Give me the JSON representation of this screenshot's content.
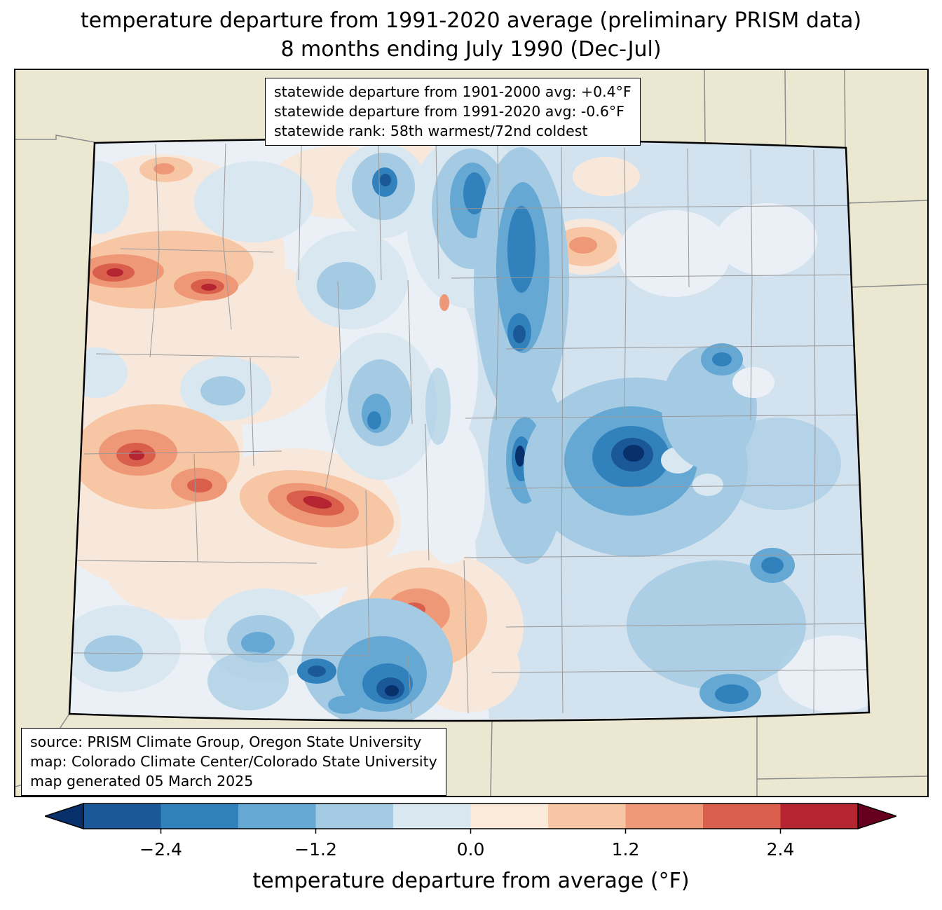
{
  "title": {
    "line1": "temperature departure from 1991-2020 average (preliminary PRISM data)",
    "line2": "8 months ending July 1990 (Dec-Jul)"
  },
  "stats_box": {
    "lines": [
      "statewide departure from 1901-2000 avg: +0.4°F",
      "statewide departure from 1991-2020 avg: -0.6°F",
      "statewide rank: 58th warmest/72nd coldest"
    ]
  },
  "source_box": {
    "lines": [
      "source: PRISM Climate Group, Oregon State University",
      "map: Colorado Climate Center/Colorado State University",
      "map generated 05 March 2025"
    ]
  },
  "colorbar": {
    "label": "temperature departure from average (°F)",
    "min": -3.0,
    "max": 3.0,
    "ticks": [
      {
        "value": -2.4,
        "label": "−2.4"
      },
      {
        "value": -1.2,
        "label": "−1.2"
      },
      {
        "value": 0.0,
        "label": "0.0"
      },
      {
        "value": 1.2,
        "label": "1.2"
      },
      {
        "value": 2.4,
        "label": "2.4"
      }
    ],
    "segments": [
      "#1a5899",
      "#3181bd",
      "#66a8d4",
      "#a4cbe3",
      "#d9e7f1",
      "#fbeada",
      "#f7c6a5",
      "#ef9877",
      "#d95f4c",
      "#b42431"
    ],
    "arrow_left_color": "#08306b",
    "arrow_right_color": "#67001f"
  },
  "map": {
    "region": "Colorado",
    "background_color": "#ebe7d0",
    "state_fill_color": "#ebf0f6",
    "county_line_color": "#999999",
    "state_border_color": "#000000",
    "neighbor_line_color": "#8b8b8b"
  }
}
